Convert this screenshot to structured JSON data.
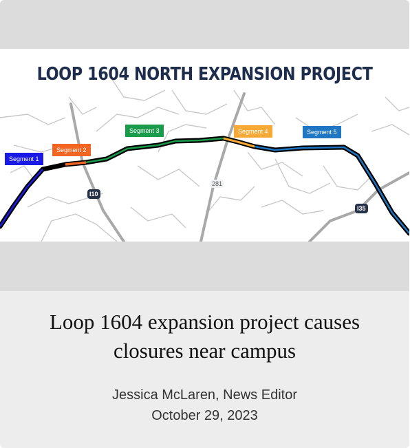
{
  "image": {
    "map_title": "LOOP 1604 NORTH EXPANSION PROJECT",
    "segments": [
      {
        "label": "Segment 1",
        "color": "#1a1ae6"
      },
      {
        "label": "Segment 2",
        "color": "#f26522"
      },
      {
        "label": "Segment 3",
        "color": "#1a9a4b"
      },
      {
        "label": "Segment 4",
        "color": "#f7a935"
      },
      {
        "label": "Segment 5",
        "color": "#1f77c4"
      }
    ],
    "highways": {
      "i10": "I10",
      "us281": "281",
      "i35": "I35"
    }
  },
  "article": {
    "headline": "Loop 1604 expansion project causes closures near campus",
    "author": "Jessica McLaren, News Editor",
    "date": "October 29, 2023"
  }
}
